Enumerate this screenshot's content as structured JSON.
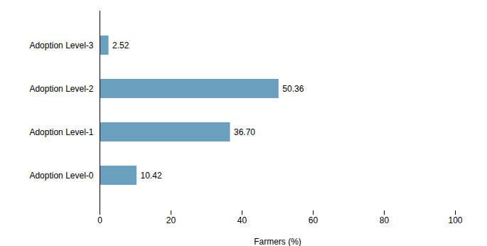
{
  "chart_data": {
    "type": "bar",
    "orientation": "horizontal",
    "categories": [
      "Adoption Level-0",
      "Adoption Level-1",
      "Adoption Level-2",
      "Adoption Level-3"
    ],
    "values": [
      10.42,
      36.7,
      50.36,
      2.52
    ],
    "value_labels": [
      "10.42",
      "36.70",
      "50.36",
      "2.52"
    ],
    "data_labels": true,
    "color": "#6A9FC0",
    "xlabel": "Farmers (%)",
    "xlim": [
      0,
      100
    ],
    "xticks": [
      0,
      20,
      40,
      60,
      80,
      100
    ],
    "grid": false
  }
}
